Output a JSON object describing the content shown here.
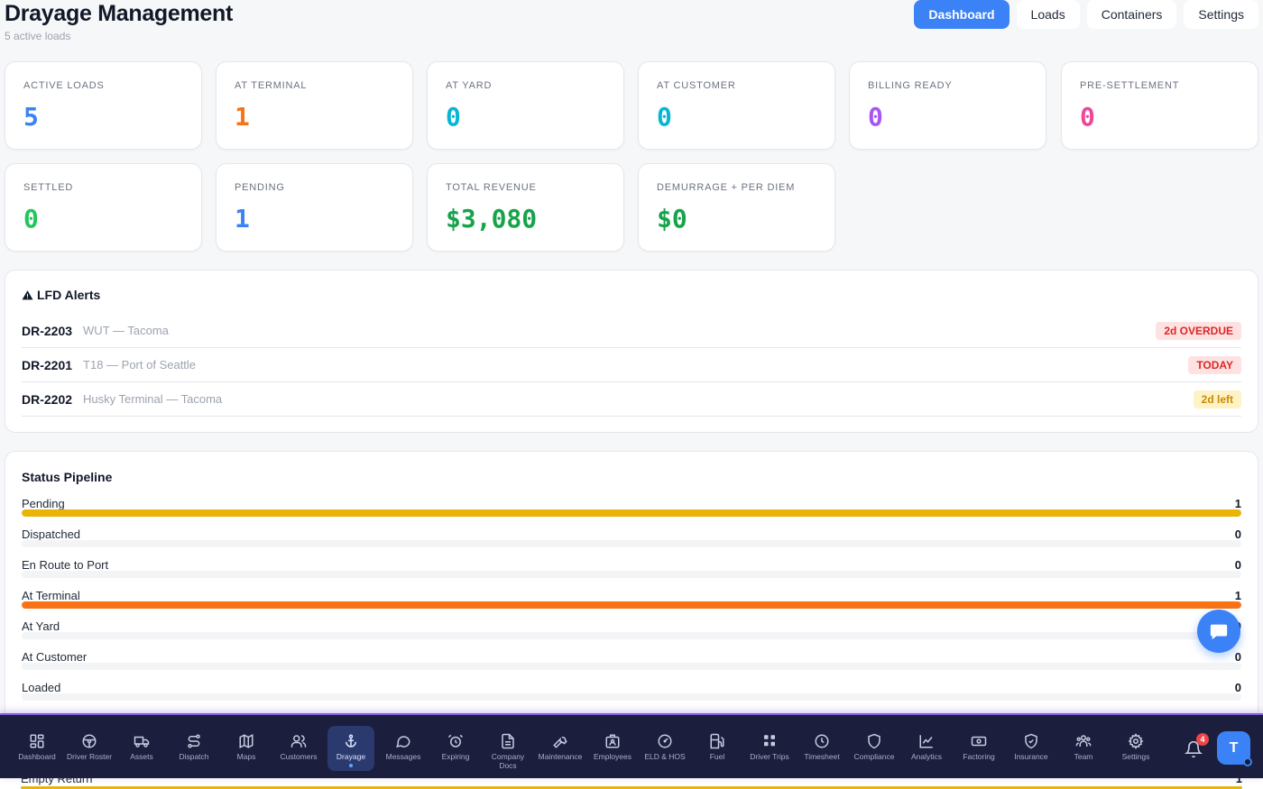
{
  "header": {
    "title": "Drayage Management",
    "subtitle": "5 active loads",
    "tabs": [
      {
        "label": "Dashboard",
        "active": true
      },
      {
        "label": "Loads",
        "active": false
      },
      {
        "label": "Containers",
        "active": false
      },
      {
        "label": "Settings",
        "active": false
      }
    ]
  },
  "stats": [
    {
      "label": "ACTIVE LOADS",
      "value": "5",
      "color": "#3b82f6"
    },
    {
      "label": "AT TERMINAL",
      "value": "1",
      "color": "#f97316"
    },
    {
      "label": "AT YARD",
      "value": "0",
      "color": "#06b6d4"
    },
    {
      "label": "AT CUSTOMER",
      "value": "0",
      "color": "#06b6d4"
    },
    {
      "label": "BILLING READY",
      "value": "0",
      "color": "#a855f7"
    },
    {
      "label": "PRE-SETTLEMENT",
      "value": "0",
      "color": "#ec4899"
    },
    {
      "label": "SETTLED",
      "value": "0",
      "color": "#22c55e"
    },
    {
      "label": "PENDING",
      "value": "1",
      "color": "#3b82f6"
    },
    {
      "label": "TOTAL REVENUE",
      "value": "$3,080",
      "color": "#16a34a"
    },
    {
      "label": "DEMURRAGE + PER DIEM",
      "value": "$0",
      "color": "#16a34a"
    }
  ],
  "lfd_alerts": {
    "title": "LFD Alerts",
    "icon": "warning-icon",
    "items": [
      {
        "id": "DR-2203",
        "location": "WUT — Tacoma",
        "badge": "2d OVERDUE",
        "badge_color": "#dc2626",
        "badge_bg": "#fee2e2"
      },
      {
        "id": "DR-2201",
        "location": "T18 — Port of Seattle",
        "badge": "TODAY",
        "badge_color": "#dc2626",
        "badge_bg": "#fee2e2"
      },
      {
        "id": "DR-2202",
        "location": "Husky Terminal — Tacoma",
        "badge": "2d left",
        "badge_color": "#ca8a04",
        "badge_bg": "#fef3c7"
      }
    ]
  },
  "pipeline": {
    "title": "Status Pipeline",
    "rows": [
      {
        "label": "Pending",
        "count": "1",
        "fill": 1,
        "color": "#eab308"
      },
      {
        "label": "Dispatched",
        "count": "0",
        "fill": 0,
        "color": "#3b82f6"
      },
      {
        "label": "En Route to Port",
        "count": "0",
        "fill": 0,
        "color": "#3b82f6"
      },
      {
        "label": "At Terminal",
        "count": "1",
        "fill": 1,
        "color": "#f97316"
      },
      {
        "label": "At Yard",
        "count": "0",
        "fill": 0,
        "color": "#06b6d4"
      },
      {
        "label": "At Customer",
        "count": "0",
        "fill": 0,
        "color": "#06b6d4"
      },
      {
        "label": "Loaded",
        "count": "0",
        "fill": 0,
        "color": "#3b82f6"
      }
    ],
    "partial_row": {
      "label": "Empty Return",
      "count": "1",
      "color": "#eab308"
    }
  },
  "bottom_nav": {
    "items": [
      {
        "label": "Dashboard",
        "icon": "dashboard-icon"
      },
      {
        "label": "Driver Roster",
        "icon": "steering-wheel-icon"
      },
      {
        "label": "Assets",
        "icon": "truck-icon"
      },
      {
        "label": "Dispatch",
        "icon": "route-icon"
      },
      {
        "label": "Maps",
        "icon": "map-icon"
      },
      {
        "label": "Customers",
        "icon": "users-icon"
      },
      {
        "label": "Drayage",
        "icon": "anchor-icon",
        "active": true
      },
      {
        "label": "Messages",
        "icon": "chat-bubble-icon"
      },
      {
        "label": "Expiring",
        "icon": "alarm-clock-icon"
      },
      {
        "label": "Company Docs",
        "icon": "document-icon"
      },
      {
        "label": "Maintenance",
        "icon": "wrench-icon"
      },
      {
        "label": "Employees",
        "icon": "id-badge-icon"
      },
      {
        "label": "ELD & HOS",
        "icon": "gauge-icon"
      },
      {
        "label": "Fuel",
        "icon": "fuel-pump-icon"
      },
      {
        "label": "Driver Trips",
        "icon": "grid-icon"
      },
      {
        "label": "Timesheet",
        "icon": "clock-icon"
      },
      {
        "label": "Compliance",
        "icon": "shield-icon"
      },
      {
        "label": "Analytics",
        "icon": "line-chart-icon"
      },
      {
        "label": "Factoring",
        "icon": "banknote-icon"
      },
      {
        "label": "Insurance",
        "icon": "shield-check-icon"
      },
      {
        "label": "Team",
        "icon": "team-icon"
      },
      {
        "label": "Settings",
        "icon": "gear-icon"
      }
    ],
    "notifications_count": "4",
    "avatar_initial": "T"
  }
}
